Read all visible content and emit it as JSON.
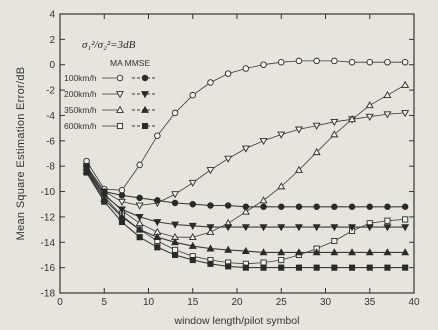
{
  "chart_data": {
    "type": "line",
    "xlabel": "window length/pilot symbol",
    "ylabel": "Mean Square Estimation Error/dB",
    "annotation": "σ₁²/σ₂²=3dB",
    "legend_header": "MA MMSE",
    "xlim": [
      0,
      40
    ],
    "ylim": [
      -18,
      4
    ],
    "x_ticks": [
      0,
      5,
      10,
      15,
      20,
      25,
      30,
      35,
      40
    ],
    "y_ticks": [
      4,
      2,
      0,
      -2,
      -4,
      -6,
      -8,
      -10,
      -12,
      -14,
      -16,
      -18
    ],
    "x": [
      3,
      5,
      7,
      9,
      11,
      13,
      15,
      17,
      19,
      21,
      23,
      25,
      27,
      29,
      31,
      33,
      35,
      37,
      39
    ],
    "series": [
      {
        "name": "100km/h",
        "method": "MA",
        "marker": "circle",
        "filled": false,
        "values": [
          -7.6,
          -9.8,
          -9.9,
          -7.9,
          -5.6,
          -3.8,
          -2.4,
          -1.4,
          -0.7,
          -0.3,
          0.0,
          0.2,
          0.3,
          0.3,
          0.3,
          0.2,
          0.2,
          0.2,
          0.2
        ]
      },
      {
        "name": "200km/h",
        "method": "MA",
        "marker": "triangle-down",
        "filled": false,
        "values": [
          -8.0,
          -10.0,
          -10.8,
          -11.1,
          -10.9,
          -10.2,
          -9.3,
          -8.3,
          -7.4,
          -6.6,
          -6.0,
          -5.5,
          -5.1,
          -4.8,
          -4.5,
          -4.3,
          -4.1,
          -3.9,
          -3.8
        ]
      },
      {
        "name": "350km/h",
        "method": "MA",
        "marker": "triangle-up",
        "filled": false,
        "values": [
          -8.1,
          -10.2,
          -11.5,
          -12.5,
          -13.2,
          -13.6,
          -13.6,
          -13.2,
          -12.5,
          -11.6,
          -10.7,
          -9.6,
          -8.3,
          -6.9,
          -5.5,
          -4.3,
          -3.2,
          -2.4,
          -1.6
        ]
      },
      {
        "name": "600km/h",
        "method": "MA",
        "marker": "square",
        "filled": false,
        "values": [
          -8.3,
          -10.4,
          -11.9,
          -13.0,
          -13.9,
          -14.6,
          -15.1,
          -15.4,
          -15.6,
          -15.7,
          -15.6,
          -15.4,
          -15.0,
          -14.5,
          -13.9,
          -13.1,
          -12.5,
          -12.3,
          -12.2
        ]
      },
      {
        "name": "100km/h",
        "method": "MMSE",
        "marker": "circle",
        "filled": true,
        "values": [
          -8.0,
          -10.0,
          -10.3,
          -10.5,
          -10.7,
          -10.9,
          -11.0,
          -11.1,
          -11.1,
          -11.2,
          -11.2,
          -11.2,
          -11.2,
          -11.2,
          -11.2,
          -11.2,
          -11.2,
          -11.2,
          -11.2
        ]
      },
      {
        "name": "200km/h",
        "method": "MMSE",
        "marker": "triangle-down",
        "filled": true,
        "values": [
          -8.2,
          -10.3,
          -11.4,
          -12.0,
          -12.4,
          -12.6,
          -12.7,
          -12.8,
          -12.8,
          -12.8,
          -12.8,
          -12.8,
          -12.8,
          -12.8,
          -12.8,
          -12.8,
          -12.8,
          -12.8,
          -12.8
        ]
      },
      {
        "name": "350km/h",
        "method": "MMSE",
        "marker": "triangle-up",
        "filled": true,
        "values": [
          -8.4,
          -10.6,
          -12.0,
          -13.0,
          -13.6,
          -14.0,
          -14.3,
          -14.5,
          -14.6,
          -14.7,
          -14.8,
          -14.8,
          -14.8,
          -14.8,
          -14.8,
          -14.8,
          -14.8,
          -14.8,
          -14.8
        ]
      },
      {
        "name": "600km/h",
        "method": "MMSE",
        "marker": "square",
        "filled": true,
        "values": [
          -8.5,
          -10.8,
          -12.4,
          -13.6,
          -14.4,
          -15.0,
          -15.4,
          -15.7,
          -15.9,
          -16.0,
          -16.0,
          -16.0,
          -16.0,
          -16.0,
          -16.0,
          -16.0,
          -16.0,
          -16.0,
          -16.0
        ]
      }
    ],
    "legend_position": "top-left",
    "grid": false
  }
}
